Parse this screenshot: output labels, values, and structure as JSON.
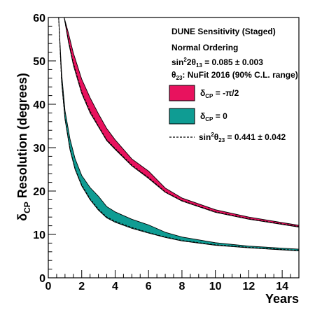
{
  "chart_data": {
    "type": "area",
    "title": "",
    "xlabel": "Years",
    "ylabel_main": "δ",
    "ylabel_sub": "CP",
    "ylabel_rest": " Resolution (degrees)",
    "xlim": [
      0,
      15
    ],
    "ylim": [
      0,
      60
    ],
    "x_ticks": [
      0,
      2,
      4,
      6,
      8,
      10,
      12,
      14
    ],
    "y_ticks": [
      0,
      10,
      20,
      30,
      40,
      50,
      60
    ],
    "grid": false,
    "legend_position": "top-right",
    "annotations": {
      "line1": "DUNE Sensitivity (Staged)",
      "line2": "Normal Ordering",
      "line3": {
        "prefix": "sin",
        "sup": "2",
        "mid": "2θ",
        "sub": "13",
        "suffix": " = 0.085  ± 0.003"
      },
      "line4": {
        "prefix": "θ",
        "sub": "23",
        "suffix": ": NuFit 2016 (90% C.L. range)"
      }
    },
    "series": [
      {
        "name": {
          "main": "δ",
          "sub": "CP",
          "suffix": " = -π/2"
        },
        "color": "#e8125e",
        "x": [
          0.95,
          1.2,
          1.5,
          2.0,
          2.5,
          3.0,
          3.5,
          4.0,
          5.0,
          6.0,
          7.0,
          8.0,
          10.0,
          12.0,
          15.0
        ],
        "lower": [
          60,
          54.5,
          49,
          42.5,
          38.0,
          34.8,
          31.6,
          29.6,
          25.8,
          22.9,
          19.7,
          17.7,
          15.1,
          13.5,
          11.7
        ],
        "upper": [
          60,
          56.5,
          51.8,
          45.8,
          41.5,
          37.8,
          34.4,
          31.8,
          27.4,
          24.6,
          20.7,
          18.4,
          15.7,
          14.0,
          12.1
        ],
        "dashed": [
          60,
          54.8,
          49.5,
          42.8,
          38.4,
          35.0,
          31.8,
          29.8,
          26.0,
          23.1,
          19.8,
          17.8,
          15.2,
          13.6,
          11.8
        ]
      },
      {
        "name": {
          "main": "δ",
          "sub": "CP",
          "suffix": " = 0"
        },
        "color": "#0f9c93",
        "x": [
          0.62,
          0.8,
          1.0,
          1.3,
          1.6,
          2.0,
          2.5,
          3.0,
          3.5,
          4.0,
          5.0,
          6.0,
          7.0,
          8.0,
          10.0,
          12.0,
          15.0
        ],
        "lower": [
          60,
          45,
          36.5,
          29.5,
          25.0,
          21.2,
          18.0,
          15.6,
          13.8,
          12.8,
          11.4,
          10.3,
          9.3,
          8.5,
          7.5,
          6.9,
          6.2
        ],
        "upper": [
          60,
          47,
          38.5,
          32.0,
          27.5,
          23.6,
          20.8,
          18.8,
          16.4,
          15.2,
          13.5,
          12.2,
          10.5,
          9.4,
          8.1,
          7.3,
          6.6
        ],
        "dashed": [
          60,
          45.2,
          36.7,
          29.7,
          25.2,
          21.4,
          18.2,
          15.8,
          14.0,
          13.0,
          11.6,
          10.4,
          9.4,
          8.6,
          7.6,
          7.0,
          6.3
        ]
      }
    ],
    "dashed_legend": {
      "prefix": "sin",
      "sup": "2",
      "mid": "θ",
      "sub": "23",
      "suffix": " = 0.441  ± 0.042"
    }
  }
}
